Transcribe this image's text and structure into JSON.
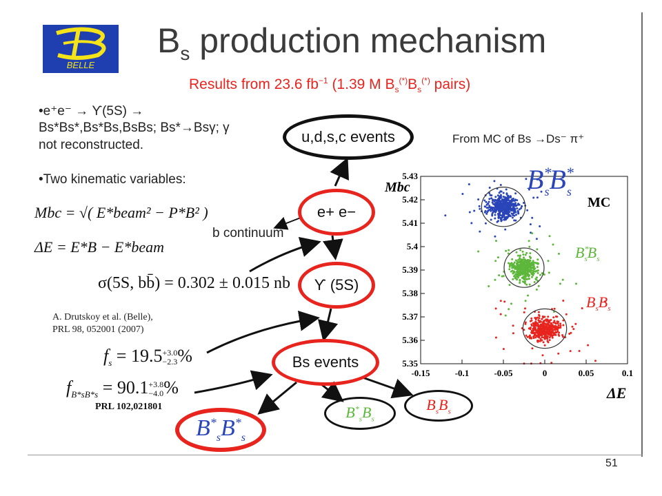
{
  "slide": {
    "title_main": "B",
    "title_sub": "s",
    "title_rest": " production mechanism",
    "logo_text": "BELLE",
    "page_number": "51"
  },
  "subtitle": {
    "a": "Results from 23.6 fb",
    "a_sup": "−1",
    "b": " (1.39 M B",
    "b_sub": "s",
    "b_sup": "(*)",
    "c": "B",
    "c_sub": "s",
    "c_sup": "(*)",
    "d": " pairs)"
  },
  "left": {
    "bullet1_line1": "•e⁺e⁻ → ϒ(5S) →",
    "bullet1_line2": "Bs*Bs*,Bs*Bs,BsBs; Bs*→Bsγ; γ",
    "bullet1_line3": "not reconstructed.",
    "bullet2": "•Two kinematic variables:",
    "mbc_eq": "Mbc = √( E*beam² − P*B² )",
    "de_eq": "ΔE = E*B − E*beam",
    "sigma_eq": "σ(5S, bb̄) = 0.302 ± 0.015 nb",
    "ref_line1": "A. Drutskoy et al. (Belle),",
    "ref_line2": "PRL 98, 052001 (2007)",
    "fs_main": "f",
    "fs_sub": "s",
    "fs_val": " = 19.5",
    "fs_up": "+3.0",
    "fs_dn": "−2.3",
    "fs_unit": "%",
    "fbb_main": "f",
    "fbb_sub": "B*sB*s",
    "fbb_val": " = 90.1",
    "fbb_up": "+3.8",
    "fbb_dn": "−4.0",
    "fbb_unit": "%",
    "prl": "PRL 102,021801"
  },
  "flow": {
    "udsc": "u,d,s,c events",
    "ee": "e+ e−",
    "b_continuum": "b continuum",
    "upsilon": "ϒ (5S)",
    "bs_events": "Bs events",
    "n1_B": "B",
    "n1_s": "s",
    "n1_star": "*",
    "n2_B": "B",
    "n2_s": "s",
    "n3_B": "B",
    "n3_s": "s"
  },
  "colors": {
    "red": "#e8241e",
    "blue": "#2a45b8",
    "green": "#5db73a",
    "black_ellipse": "#111111"
  },
  "chart_data": {
    "type": "scatter",
    "title": "From MC of Bs →Ds⁻ π⁺",
    "mc_label": "MC",
    "xlabel": "ΔE",
    "ylabel": "Mbc",
    "xlim": [
      -0.15,
      0.1
    ],
    "ylim": [
      5.35,
      5.43
    ],
    "x_ticks": [
      "-0.15",
      "-0.1",
      "-0.05",
      "0",
      "0.05",
      "0.1"
    ],
    "y_ticks": [
      "5.43",
      "5.42",
      "5.41",
      "5.4",
      "5.39",
      "5.38",
      "5.37",
      "5.36",
      "5.35"
    ],
    "series": [
      {
        "name": "Bs*Bs*",
        "color": "#2a45b8",
        "center": [
          -0.05,
          5.417
        ],
        "spread": [
          0.012,
          0.0035
        ],
        "count": 500
      },
      {
        "name": "Bs*Bs",
        "color": "#5db73a",
        "center": [
          -0.025,
          5.391
        ],
        "spread": [
          0.011,
          0.0035
        ],
        "count": 420
      },
      {
        "name": "BsBs",
        "color": "#e8241e",
        "center": [
          0.0,
          5.365
        ],
        "spread": [
          0.012,
          0.0035
        ],
        "count": 420
      }
    ]
  }
}
